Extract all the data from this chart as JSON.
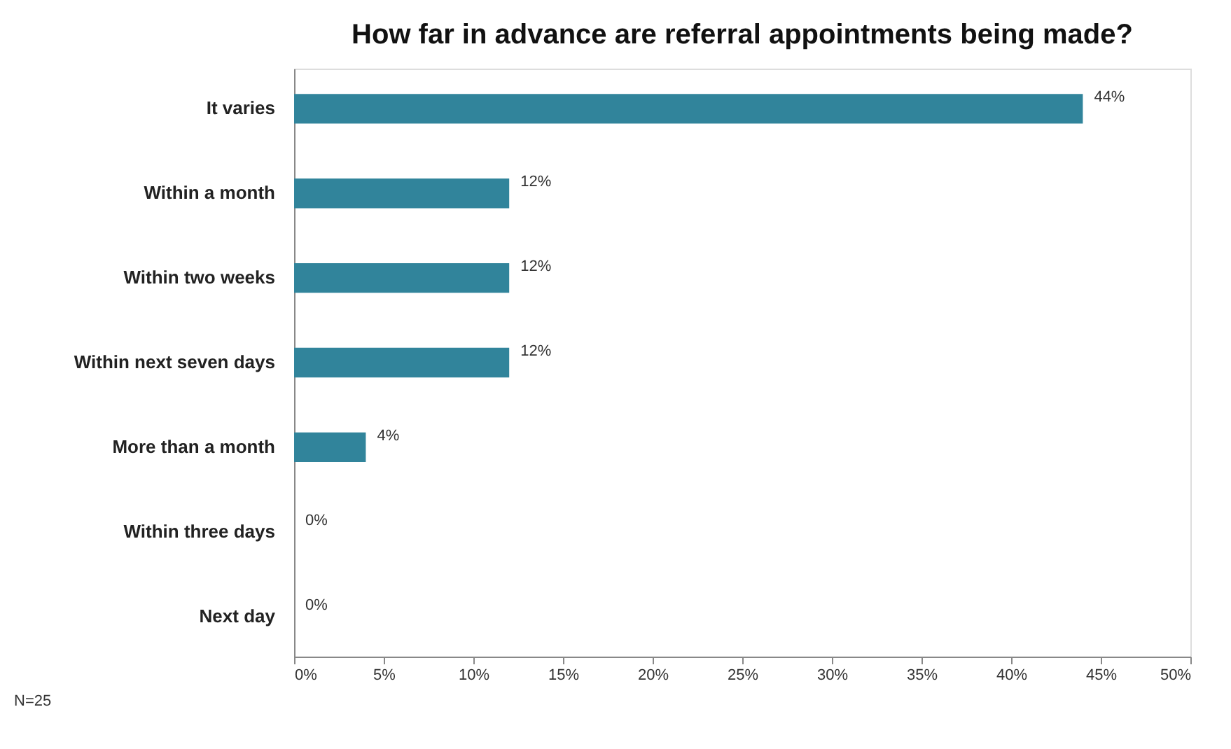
{
  "chart_data": {
    "type": "bar",
    "orientation": "horizontal",
    "title": "How far in advance are referral appointments being made?",
    "categories": [
      "It varies",
      "Within a month",
      "Within two weeks",
      "Within next seven days",
      "More than a month",
      "Within three days",
      "Next day"
    ],
    "values": [
      44,
      12,
      12,
      12,
      4,
      0,
      0
    ],
    "value_labels": [
      "44%",
      "12%",
      "12%",
      "12%",
      "4%",
      "0%",
      "0%"
    ],
    "color": "#31849b",
    "xlim": [
      0,
      50
    ],
    "xticks": [
      {
        "value": 0,
        "label": "0%"
      },
      {
        "value": 5,
        "label": "5%"
      },
      {
        "value": 10,
        "label": "10%"
      },
      {
        "value": 15,
        "label": "15%"
      },
      {
        "value": 20,
        "label": "20%"
      },
      {
        "value": 25,
        "label": "25%"
      },
      {
        "value": 30,
        "label": "30%"
      },
      {
        "value": 35,
        "label": "35%"
      },
      {
        "value": 40,
        "label": "40%"
      },
      {
        "value": 45,
        "label": "45%"
      },
      {
        "value": 50,
        "label": "50%"
      }
    ],
    "grid": false,
    "annotations": [
      "N=25"
    ]
  }
}
